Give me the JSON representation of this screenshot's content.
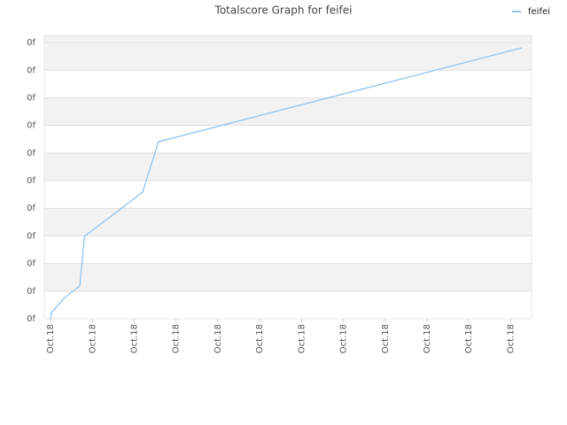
{
  "chart_data": {
    "type": "line",
    "title": "Totalscore Graph for feifei",
    "x": [
      0,
      0.02,
      0.32,
      0.7,
      0.81,
      2.2,
      2.58,
      11.27
    ],
    "series": [
      {
        "name": "feifei",
        "color": "#90c3ee",
        "values": [
          0,
          0.22,
          0.74,
          1.19,
          2.98,
          4.58,
          6.41,
          9.81
        ]
      }
    ],
    "xlim": [
      -0.15,
      11.5
    ],
    "xticks": [
      {
        "value": 0,
        "label": "Oct.18"
      },
      {
        "value": 1,
        "label": "Oct.18"
      },
      {
        "value": 2,
        "label": "Oct.18"
      },
      {
        "value": 3,
        "label": "Oct.18"
      },
      {
        "value": 4,
        "label": "Oct.18"
      },
      {
        "value": 5,
        "label": "Oct.18"
      },
      {
        "value": 6,
        "label": "Oct.18"
      },
      {
        "value": 7,
        "label": "Oct.18"
      },
      {
        "value": 8,
        "label": "Oct.18"
      },
      {
        "value": 9,
        "label": "Oct.18"
      },
      {
        "value": 10,
        "label": "Oct.18"
      },
      {
        "value": 11,
        "label": "Oct.18"
      }
    ],
    "ylim": [
      0,
      10.26
    ],
    "yticks": [
      {
        "value": 0,
        "label": "0f"
      },
      {
        "value": 1,
        "label": "0f"
      },
      {
        "value": 2,
        "label": "0f"
      },
      {
        "value": 3,
        "label": "0f"
      },
      {
        "value": 4,
        "label": "0f"
      },
      {
        "value": 5,
        "label": "0f"
      },
      {
        "value": 6,
        "label": "0f"
      },
      {
        "value": 7,
        "label": "0f"
      },
      {
        "value": 8,
        "label": "0f"
      },
      {
        "value": 9,
        "label": "0f"
      },
      {
        "value": 10,
        "label": "0f"
      }
    ],
    "grid": true,
    "legend": "top-right"
  }
}
